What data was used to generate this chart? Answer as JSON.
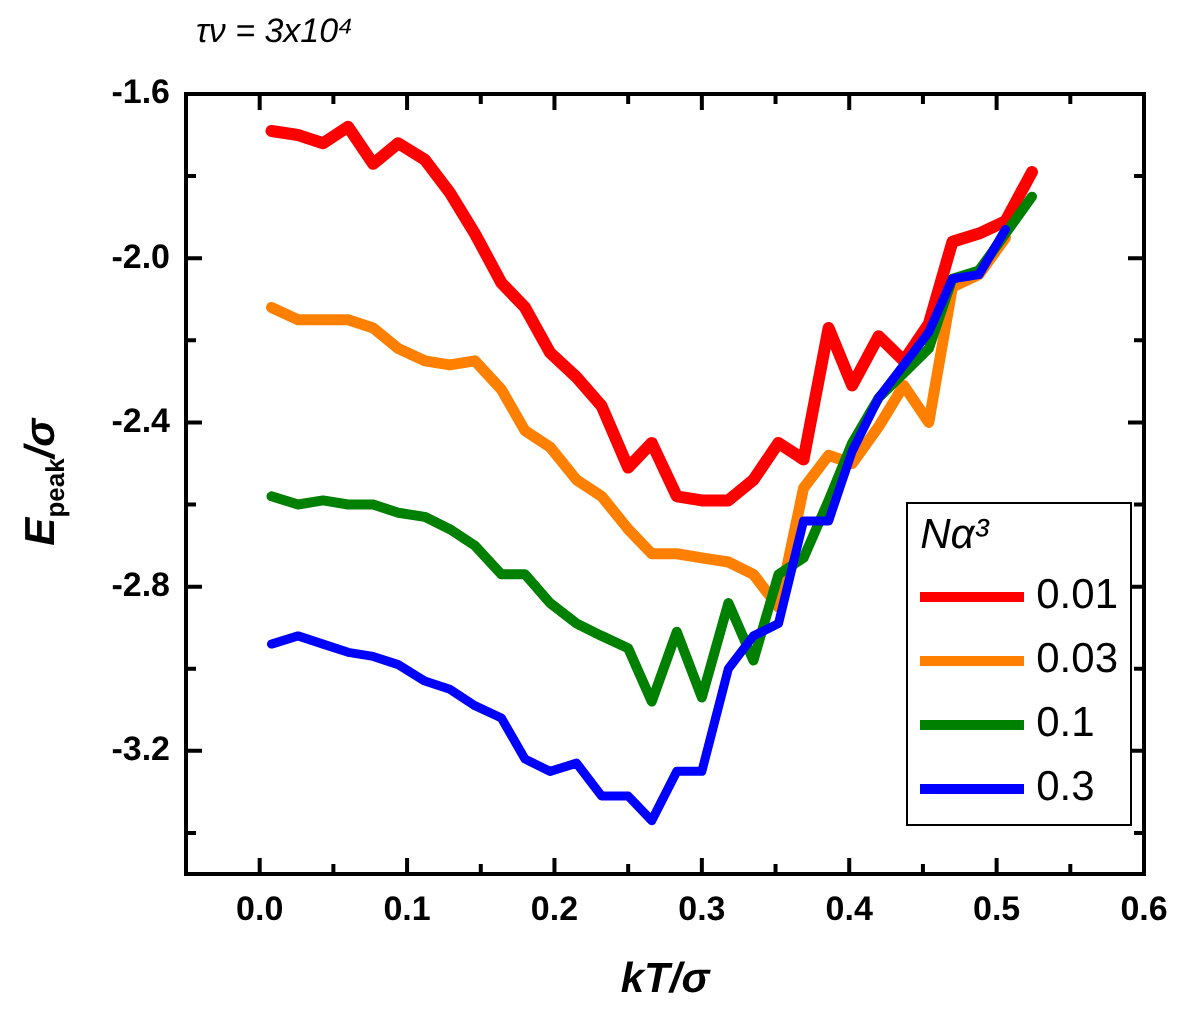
{
  "chart_data": {
    "type": "line",
    "title": "τν = 3x10⁴",
    "xlabel": "kT/σ",
    "ylabel": "E$_{peak}$/σ",
    "legend_title": "Nα³",
    "legend": "bottom right",
    "grid": false,
    "marker": "none",
    "line_style": "solid",
    "xlim": [
      -0.05,
      0.6
    ],
    "ylim": [
      -3.5,
      -1.6
    ],
    "xticks": [
      {
        "value": -0.05,
        "label": null
      },
      {
        "value": 0,
        "label": "0.0"
      },
      {
        "value": 0.05,
        "label": null
      },
      0.1,
      {
        "value": 0.15,
        "label": null
      },
      0.2,
      {
        "value": 0.25,
        "label": null
      },
      0.3,
      {
        "value": 0.35,
        "label": null
      },
      0.4,
      {
        "value": 0.45,
        "label": null
      },
      0.5,
      {
        "value": 0.55,
        "label": null
      },
      0.6
    ],
    "yticks": [
      {
        "value": -3.4,
        "label": null
      },
      -3.2,
      {
        "value": -3.0,
        "label": null
      },
      -2.8,
      {
        "value": -2.6,
        "label": null
      },
      -2.4,
      {
        "value": -2.2,
        "label": null
      },
      {
        "value": -2.0,
        "label": "-2.0"
      },
      {
        "value": -1.8,
        "label": null
      },
      -1.6
    ],
    "series": [
      {
        "name": "0.01",
        "color": "#ff0000",
        "x": [
          0.008,
          0.026,
          0.043,
          0.06,
          0.077,
          0.094,
          0.112,
          0.129,
          0.146,
          0.164,
          0.18,
          0.197,
          0.215,
          0.232,
          0.25,
          0.266,
          0.283,
          0.3,
          0.318,
          0.335,
          0.352,
          0.369,
          0.386,
          0.402,
          0.42,
          0.437,
          0.454,
          0.47,
          0.488,
          0.506,
          0.524
        ],
        "values": [
          -1.69,
          -1.7,
          -1.72,
          -1.68,
          -1.77,
          -1.72,
          -1.76,
          -1.84,
          -1.94,
          -2.06,
          -2.12,
          -2.23,
          -2.29,
          -2.36,
          -2.51,
          -2.45,
          -2.58,
          -2.59,
          -2.59,
          -2.54,
          -2.45,
          -2.49,
          -2.17,
          -2.31,
          -2.19,
          -2.25,
          -2.16,
          -1.96,
          -1.94,
          -1.91,
          -1.79
        ]
      },
      {
        "name": "0.03",
        "color": "#ff8000",
        "x": [
          0.008,
          0.026,
          0.043,
          0.06,
          0.077,
          0.094,
          0.112,
          0.129,
          0.146,
          0.164,
          0.18,
          0.197,
          0.215,
          0.232,
          0.25,
          0.266,
          0.283,
          0.3,
          0.318,
          0.335,
          0.352,
          0.369,
          0.386,
          0.402,
          0.42,
          0.437,
          0.454,
          0.47,
          0.488,
          0.506
        ],
        "values": [
          -2.12,
          -2.15,
          -2.15,
          -2.15,
          -2.17,
          -2.22,
          -2.25,
          -2.26,
          -2.25,
          -2.32,
          -2.42,
          -2.46,
          -2.54,
          -2.58,
          -2.66,
          -2.72,
          -2.72,
          -2.73,
          -2.74,
          -2.77,
          -2.85,
          -2.56,
          -2.48,
          -2.5,
          -2.41,
          -2.31,
          -2.4,
          -2.07,
          -2.04,
          -1.95
        ]
      },
      {
        "name": "0.1",
        "color": "#008000",
        "x": [
          0.008,
          0.026,
          0.043,
          0.06,
          0.077,
          0.094,
          0.112,
          0.129,
          0.146,
          0.164,
          0.18,
          0.197,
          0.215,
          0.232,
          0.25,
          0.266,
          0.283,
          0.3,
          0.318,
          0.335,
          0.352,
          0.369,
          0.386,
          0.402,
          0.42,
          0.437,
          0.454,
          0.47,
          0.488,
          0.506,
          0.524
        ],
        "values": [
          -2.58,
          -2.6,
          -2.59,
          -2.6,
          -2.6,
          -2.62,
          -2.63,
          -2.66,
          -2.7,
          -2.77,
          -2.77,
          -2.84,
          -2.89,
          -2.92,
          -2.95,
          -3.08,
          -2.91,
          -3.07,
          -2.84,
          -2.98,
          -2.77,
          -2.73,
          -2.59,
          -2.45,
          -2.34,
          -2.28,
          -2.22,
          -2.05,
          -2.03,
          -1.94,
          -1.85
        ]
      },
      {
        "name": "0.3",
        "color": "#0000ff",
        "x": [
          0.008,
          0.026,
          0.043,
          0.06,
          0.077,
          0.094,
          0.112,
          0.129,
          0.146,
          0.164,
          0.18,
          0.197,
          0.215,
          0.232,
          0.25,
          0.266,
          0.283,
          0.3,
          0.318,
          0.335,
          0.352,
          0.369,
          0.386,
          0.402,
          0.42,
          0.437,
          0.454,
          0.47,
          0.488,
          0.506
        ],
        "values": [
          -2.94,
          -2.92,
          -2.94,
          -2.96,
          -2.97,
          -2.99,
          -3.03,
          -3.05,
          -3.09,
          -3.12,
          -3.22,
          -3.25,
          -3.23,
          -3.31,
          -3.31,
          -3.37,
          -3.25,
          -3.25,
          -3.0,
          -2.92,
          -2.89,
          -2.64,
          -2.64,
          -2.47,
          -2.34,
          -2.26,
          -2.18,
          -2.05,
          -2.04,
          -1.93
        ]
      }
    ]
  }
}
